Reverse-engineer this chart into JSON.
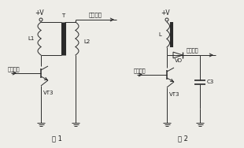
{
  "bg_color": "#eeede8",
  "line_color": "#2a2a2a",
  "text_color": "#1a1a1a",
  "fig1_label": "图 1",
  "fig2_label": "图 2",
  "label_VT3": "VT3",
  "label_L1": "L1",
  "label_L2": "L2",
  "label_T": "T",
  "label_L": "L",
  "label_VD": "VD",
  "label_C3": "C3",
  "label_output1": "升压输出",
  "label_output2": "升压输出",
  "label_input1": "振荡输入",
  "label_input2": "振荡输入",
  "label_pv1": "+V",
  "label_pv2": "+V"
}
